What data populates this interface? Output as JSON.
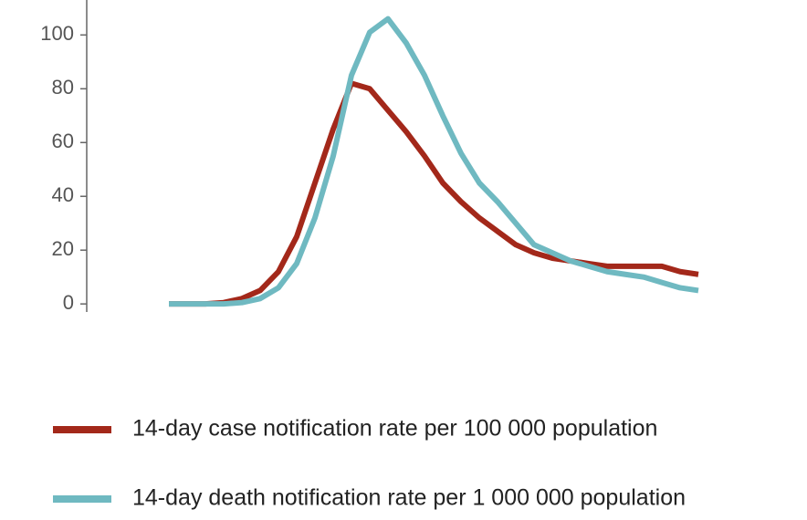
{
  "chart_data": {
    "type": "line",
    "categories": [
      null,
      null,
      null,
      null,
      null,
      null,
      null,
      null,
      null,
      null,
      null,
      null,
      null,
      null,
      null,
      null,
      null,
      null,
      null,
      null,
      null,
      null,
      null,
      null,
      null,
      null,
      null,
      null,
      null,
      null
    ],
    "series": [
      {
        "name": "14-day case notification rate per 100 000 population",
        "color": "#a3281a",
        "values": [
          0,
          0,
          0,
          0.5,
          2,
          5,
          12,
          25,
          45,
          65,
          82,
          80,
          72,
          64,
          55,
          45,
          38,
          32,
          27,
          22,
          19,
          17,
          16,
          15,
          14,
          14,
          14,
          14,
          12,
          11
        ]
      },
      {
        "name": "14-day death notification rate per 1 000 000 population",
        "color": "#6fb9c1",
        "values": [
          0,
          0,
          0,
          0,
          0.5,
          2,
          6,
          15,
          32,
          55,
          85,
          101,
          106,
          97,
          85,
          70,
          56,
          45,
          38,
          30,
          22,
          19,
          16,
          14,
          12,
          11,
          10,
          8,
          6,
          5
        ]
      }
    ],
    "ylim": [
      -3,
      113
    ],
    "yticks": [
      0,
      20,
      40,
      60,
      80,
      100
    ]
  }
}
